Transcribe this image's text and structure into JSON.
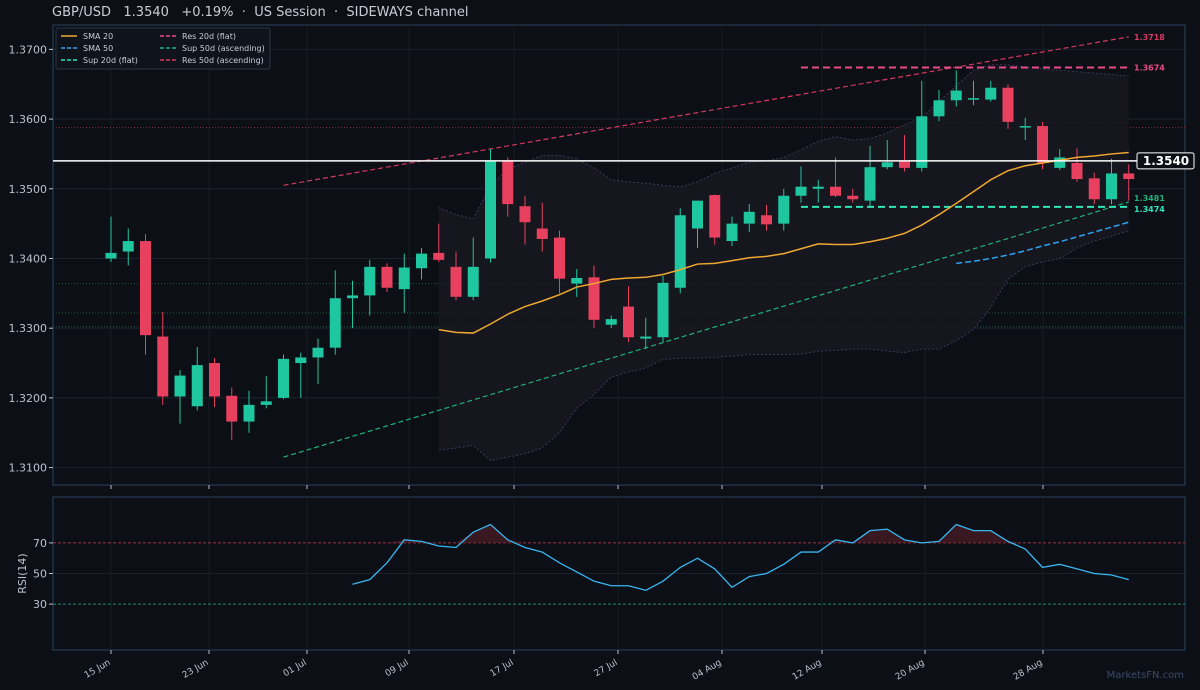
{
  "header": {
    "pair": "GBP/USD",
    "price": "1.3540",
    "change": "+0.19%",
    "session": "US Session",
    "channel": "SIDEWAYS channel",
    "sep": "·"
  },
  "watermark": "MarketsFN.com",
  "colors": {
    "bg": "#0c0f16",
    "up": "#1fc7a0",
    "down": "#e8415f",
    "sma20": "#f0a830",
    "sma50": "#2ea3f2",
    "sup20": "#2ee6b8",
    "res20": "#e84a8a",
    "sup50": "#21b07a",
    "res50": "#d6385f",
    "rsi": "#38b6f0"
  },
  "chart_data": {
    "type": "candlestick",
    "y_ticks": [
      "1.3100",
      "1.3200",
      "1.3300",
      "1.3400",
      "1.3500",
      "1.3600",
      "1.3700"
    ],
    "x_ticks": [
      "15 Jun",
      "23 Jun",
      "01 Jul",
      "09 Jul",
      "17 Jul",
      "27 Jul",
      "04 Aug",
      "12 Aug",
      "20 Aug",
      "28 Aug"
    ],
    "ylim": [
      1.3075,
      1.3735
    ],
    "price_label": "1.3540",
    "legend": [
      {
        "label": "SMA 20",
        "style": "solid",
        "color": "#f0a830"
      },
      {
        "label": "SMA 50",
        "style": "dashed",
        "color": "#2ea3f2"
      },
      {
        "label": "Sup 20d (flat)",
        "style": "dashed",
        "color": "#2ee6b8"
      },
      {
        "label": "Res 20d (flat)",
        "style": "dashed",
        "color": "#e84a8a"
      },
      {
        "label": "Sup 50d (ascending)",
        "style": "dashed",
        "color": "#21b07a"
      },
      {
        "label": "Res 50d (ascending)",
        "style": "dashed",
        "color": "#d6385f"
      }
    ],
    "levels": [
      {
        "label": "1.3718",
        "value": 1.3718,
        "color": "#d6385f"
      },
      {
        "label": "1.3674",
        "value": 1.3674,
        "color": "#e84a8a"
      },
      {
        "label": "1.3481",
        "value": 1.3481,
        "color": "#21b07a"
      },
      {
        "label": "1.3474",
        "value": 1.3474,
        "color": "#2ee6b8"
      }
    ],
    "candles": [
      {
        "o": 1.34,
        "h": 1.346,
        "l": 1.3395,
        "c": 1.3408
      },
      {
        "o": 1.341,
        "h": 1.3443,
        "l": 1.339,
        "c": 1.3425
      },
      {
        "o": 1.3425,
        "h": 1.3435,
        "l": 1.3262,
        "c": 1.329
      },
      {
        "o": 1.3288,
        "h": 1.3323,
        "l": 1.319,
        "c": 1.3202
      },
      {
        "o": 1.3202,
        "h": 1.324,
        "l": 1.3163,
        "c": 1.3232
      },
      {
        "o": 1.3188,
        "h": 1.3273,
        "l": 1.3182,
        "c": 1.3247
      },
      {
        "o": 1.325,
        "h": 1.3257,
        "l": 1.3187,
        "c": 1.3202
      },
      {
        "o": 1.3203,
        "h": 1.3215,
        "l": 1.314,
        "c": 1.3166
      },
      {
        "o": 1.3166,
        "h": 1.321,
        "l": 1.315,
        "c": 1.319
      },
      {
        "o": 1.319,
        "h": 1.3231,
        "l": 1.3185,
        "c": 1.3195
      },
      {
        "o": 1.32,
        "h": 1.3262,
        "l": 1.3198,
        "c": 1.3256
      },
      {
        "o": 1.325,
        "h": 1.3265,
        "l": 1.32,
        "c": 1.3258
      },
      {
        "o": 1.3258,
        "h": 1.3285,
        "l": 1.322,
        "c": 1.3272
      },
      {
        "o": 1.3272,
        "h": 1.3383,
        "l": 1.3262,
        "c": 1.3343
      },
      {
        "o": 1.3343,
        "h": 1.3368,
        "l": 1.33,
        "c": 1.3347
      },
      {
        "o": 1.3347,
        "h": 1.3398,
        "l": 1.3318,
        "c": 1.3388
      },
      {
        "o": 1.3388,
        "h": 1.3393,
        "l": 1.3352,
        "c": 1.3358
      },
      {
        "o": 1.3356,
        "h": 1.3407,
        "l": 1.3322,
        "c": 1.3387
      },
      {
        "o": 1.3386,
        "h": 1.3415,
        "l": 1.337,
        "c": 1.3407
      },
      {
        "o": 1.3408,
        "h": 1.345,
        "l": 1.3395,
        "c": 1.3398
      },
      {
        "o": 1.3388,
        "h": 1.341,
        "l": 1.334,
        "c": 1.3345
      },
      {
        "o": 1.3345,
        "h": 1.343,
        "l": 1.334,
        "c": 1.3388
      },
      {
        "o": 1.34,
        "h": 1.3557,
        "l": 1.3394,
        "c": 1.354
      },
      {
        "o": 1.354,
        "h": 1.3545,
        "l": 1.346,
        "c": 1.3478
      },
      {
        "o": 1.3475,
        "h": 1.349,
        "l": 1.342,
        "c": 1.3452
      },
      {
        "o": 1.3443,
        "h": 1.348,
        "l": 1.341,
        "c": 1.3428
      },
      {
        "o": 1.343,
        "h": 1.344,
        "l": 1.335,
        "c": 1.3371
      },
      {
        "o": 1.3364,
        "h": 1.3385,
        "l": 1.3345,
        "c": 1.3372
      },
      {
        "o": 1.3373,
        "h": 1.339,
        "l": 1.33,
        "c": 1.3312
      },
      {
        "o": 1.3305,
        "h": 1.3318,
        "l": 1.33,
        "c": 1.3313
      },
      {
        "o": 1.3331,
        "h": 1.336,
        "l": 1.328,
        "c": 1.3287
      },
      {
        "o": 1.3285,
        "h": 1.3315,
        "l": 1.327,
        "c": 1.3288
      },
      {
        "o": 1.3287,
        "h": 1.3375,
        "l": 1.328,
        "c": 1.3365
      },
      {
        "o": 1.3358,
        "h": 1.3472,
        "l": 1.335,
        "c": 1.3462
      },
      {
        "o": 1.3443,
        "h": 1.3483,
        "l": 1.3415,
        "c": 1.3483
      },
      {
        "o": 1.3491,
        "h": 1.3492,
        "l": 1.342,
        "c": 1.343
      },
      {
        "o": 1.3425,
        "h": 1.346,
        "l": 1.3418,
        "c": 1.345
      },
      {
        "o": 1.345,
        "h": 1.3478,
        "l": 1.3438,
        "c": 1.3467
      },
      {
        "o": 1.3462,
        "h": 1.3477,
        "l": 1.344,
        "c": 1.3449
      },
      {
        "o": 1.345,
        "h": 1.35,
        "l": 1.344,
        "c": 1.349
      },
      {
        "o": 1.349,
        "h": 1.3532,
        "l": 1.348,
        "c": 1.3503
      },
      {
        "o": 1.35,
        "h": 1.3513,
        "l": 1.348,
        "c": 1.3503
      },
      {
        "o": 1.3503,
        "h": 1.3545,
        "l": 1.3488,
        "c": 1.349
      },
      {
        "o": 1.349,
        "h": 1.35,
        "l": 1.348,
        "c": 1.3485
      },
      {
        "o": 1.3483,
        "h": 1.3562,
        "l": 1.3475,
        "c": 1.3531
      },
      {
        "o": 1.3531,
        "h": 1.357,
        "l": 1.3528,
        "c": 1.3538
      },
      {
        "o": 1.354,
        "h": 1.3577,
        "l": 1.3525,
        "c": 1.353
      },
      {
        "o": 1.353,
        "h": 1.3655,
        "l": 1.3525,
        "c": 1.3604
      },
      {
        "o": 1.3604,
        "h": 1.3642,
        "l": 1.3597,
        "c": 1.3627
      },
      {
        "o": 1.3627,
        "h": 1.367,
        "l": 1.3618,
        "c": 1.3641
      },
      {
        "o": 1.363,
        "h": 1.3655,
        "l": 1.362,
        "c": 1.363
      },
      {
        "o": 1.3628,
        "h": 1.3655,
        "l": 1.3625,
        "c": 1.3645
      },
      {
        "o": 1.3645,
        "h": 1.365,
        "l": 1.3586,
        "c": 1.3596
      },
      {
        "o": 1.359,
        "h": 1.3602,
        "l": 1.357,
        "c": 1.359
      },
      {
        "o": 1.359,
        "h": 1.3596,
        "l": 1.3528,
        "c": 1.3537
      },
      {
        "o": 1.353,
        "h": 1.3557,
        "l": 1.3527,
        "c": 1.3545
      },
      {
        "o": 1.3537,
        "h": 1.3558,
        "l": 1.351,
        "c": 1.3514
      },
      {
        "o": 1.3515,
        "h": 1.3523,
        "l": 1.3478,
        "c": 1.3485
      },
      {
        "o": 1.3485,
        "h": 1.3543,
        "l": 1.3478,
        "c": 1.3522
      },
      {
        "o": 1.3522,
        "h": 1.3535,
        "l": 1.3483,
        "c": 1.3514
      }
    ],
    "sma20": [
      null,
      null,
      null,
      null,
      null,
      null,
      null,
      null,
      null,
      null,
      null,
      null,
      null,
      null,
      null,
      null,
      null,
      null,
      null,
      1.3298,
      1.3294,
      1.3293,
      1.3306,
      1.332,
      1.3331,
      1.3339,
      1.3348,
      1.3359,
      1.3364,
      1.337,
      1.3372,
      1.3373,
      1.3377,
      1.3384,
      1.3392,
      1.3393,
      1.3397,
      1.3401,
      1.3403,
      1.3407,
      1.3414,
      1.3421,
      1.342,
      1.342,
      1.3424,
      1.3429,
      1.3436,
      1.3448,
      1.3463,
      1.3479,
      1.3496,
      1.3513,
      1.3526,
      1.3533,
      1.3537,
      1.3541,
      1.3545,
      1.3547,
      1.355,
      1.3552
    ],
    "sma50": [
      null,
      null,
      null,
      null,
      null,
      null,
      null,
      null,
      null,
      null,
      null,
      null,
      null,
      null,
      null,
      null,
      null,
      null,
      null,
      null,
      null,
      null,
      null,
      null,
      null,
      null,
      null,
      null,
      null,
      null,
      null,
      null,
      null,
      null,
      null,
      null,
      null,
      null,
      null,
      null,
      null,
      null,
      null,
      null,
      null,
      null,
      null,
      null,
      null,
      1.3393,
      1.3396,
      1.34,
      1.3405,
      1.3411,
      1.3418,
      1.3424,
      1.3431,
      1.3438,
      1.3445,
      1.3452
    ],
    "band_upper": [
      null,
      null,
      null,
      null,
      null,
      null,
      null,
      null,
      null,
      null,
      null,
      null,
      null,
      null,
      null,
      null,
      null,
      null,
      null,
      1.3473,
      1.3463,
      1.3457,
      1.3505,
      1.3528,
      1.3538,
      1.3548,
      1.3548,
      1.3543,
      1.353,
      1.3513,
      1.351,
      1.3508,
      1.3505,
      1.3503,
      1.351,
      1.3522,
      1.353,
      1.3538,
      1.354,
      1.3545,
      1.3556,
      1.3568,
      1.3575,
      1.357,
      1.3572,
      1.358,
      1.3592,
      1.3602,
      1.3625,
      1.3648,
      1.367,
      1.3678,
      1.3678,
      1.3675,
      1.3672,
      1.367,
      1.3668,
      1.3666,
      1.3664,
      1.3662
    ],
    "band_lower": [
      null,
      null,
      null,
      null,
      null,
      null,
      null,
      null,
      null,
      null,
      null,
      null,
      null,
      null,
      null,
      null,
      null,
      null,
      null,
      1.3125,
      1.3128,
      1.3132,
      1.311,
      1.3115,
      1.312,
      1.3128,
      1.315,
      1.3185,
      1.3205,
      1.323,
      1.3237,
      1.3243,
      1.3255,
      1.3257,
      1.3257,
      1.3258,
      1.326,
      1.3262,
      1.3262,
      1.3262,
      1.3263,
      1.3267,
      1.3268,
      1.327,
      1.327,
      1.3267,
      1.3265,
      1.327,
      1.327,
      1.3282,
      1.3298,
      1.333,
      1.337,
      1.3388,
      1.3395,
      1.34,
      1.3415,
      1.3425,
      1.3432,
      1.344
    ],
    "sup50": {
      "start_index": 10,
      "start": 1.3115,
      "end_index": 59,
      "end": 1.3481
    },
    "res50": {
      "start_index": 10,
      "start": 1.3505,
      "end_index": 59,
      "end": 1.3718
    },
    "sup20": {
      "start_index": 40,
      "end_index": 59,
      "value": 1.3474
    },
    "res20": {
      "start_index": 40,
      "end_index": 59,
      "value": 1.3674
    },
    "price_line": 1.354,
    "dotted_levels": [
      1.3588,
      1.3364,
      1.3322,
      1.3302
    ],
    "rsi": {
      "label": "RSI(14)",
      "y_ticks": [
        "30",
        "50",
        "70"
      ],
      "ylim": [
        0,
        100
      ],
      "overbought": 70,
      "oversold": 30,
      "values": [
        null,
        null,
        null,
        null,
        null,
        null,
        null,
        null,
        null,
        null,
        null,
        null,
        null,
        null,
        43,
        46,
        57,
        72,
        71,
        68,
        67,
        77,
        82,
        72,
        67,
        64,
        57,
        51,
        45,
        42,
        42,
        39,
        45,
        54,
        60,
        53,
        41,
        48,
        50,
        56,
        64,
        64,
        72,
        70,
        78,
        79,
        72,
        70,
        71,
        82,
        78,
        78,
        71,
        66,
        54,
        56,
        53,
        50,
        49,
        46
      ]
    }
  }
}
